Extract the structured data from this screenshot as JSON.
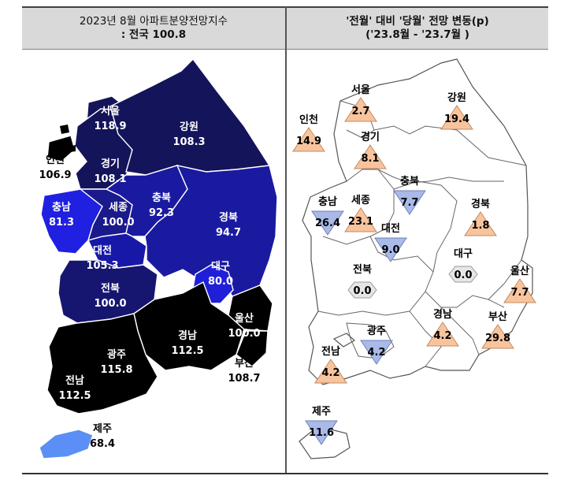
{
  "left_panel": {
    "title": "2023년 8월 아파트분양전망지수",
    "subtitle": ": 전국 100.8",
    "regions": [
      {
        "name": "서울",
        "value": "118.9",
        "color": "#14145a"
      },
      {
        "name": "인천",
        "value": "106.9",
        "color": "#000000"
      },
      {
        "name": "경기",
        "value": "108.1",
        "color": "#14145a"
      },
      {
        "name": "강원",
        "value": "108.3",
        "color": "#14145a"
      },
      {
        "name": "충남",
        "value": "81.3",
        "color": "#2020e0"
      },
      {
        "name": "세종",
        "value": "100.0",
        "color": "#1a1a8c"
      },
      {
        "name": "충북",
        "value": "92.3",
        "color": "#1a1aa0"
      },
      {
        "name": "대전",
        "value": "105.3",
        "color": "#1818a8"
      },
      {
        "name": "경북",
        "value": "94.7",
        "color": "#1a1aa0"
      },
      {
        "name": "대구",
        "value": "80.0",
        "color": "#1f1fd8"
      },
      {
        "name": "전북",
        "value": "100.0",
        "color": "#161670"
      },
      {
        "name": "울산",
        "value": "100.0",
        "color": "#000000"
      },
      {
        "name": "경남",
        "value": "112.5",
        "color": "#000000"
      },
      {
        "name": "광주",
        "value": "115.8",
        "color": "#000000"
      },
      {
        "name": "부산",
        "value": "108.7",
        "color": "#000000"
      },
      {
        "name": "전남",
        "value": "112.5",
        "color": "#000000"
      },
      {
        "name": "제주",
        "value": "68.4",
        "color": "#5b8ff5"
      }
    ]
  },
  "right_panel": {
    "title": "'전월' 대비 '당월' 전망 변동(p)",
    "subtitle": "('23.8월 - '23.7월 )",
    "colors": {
      "up": "#f8c49e",
      "down": "#a9b9e8",
      "flat": "#e6e6e6"
    },
    "regions": [
      {
        "name": "서울",
        "change": "2.7",
        "direction": "up"
      },
      {
        "name": "인천",
        "change": "14.9",
        "direction": "up"
      },
      {
        "name": "경기",
        "change": "8.1",
        "direction": "up"
      },
      {
        "name": "강원",
        "change": "19.4",
        "direction": "up"
      },
      {
        "name": "충남",
        "change": "26.4",
        "direction": "down"
      },
      {
        "name": "세종",
        "change": "23.1",
        "direction": "up"
      },
      {
        "name": "충북",
        "change": "7.7",
        "direction": "down"
      },
      {
        "name": "대전",
        "change": "9.0",
        "direction": "down"
      },
      {
        "name": "경북",
        "change": "1.8",
        "direction": "up"
      },
      {
        "name": "대구",
        "change": "0.0",
        "direction": "flat"
      },
      {
        "name": "전북",
        "change": "0.0",
        "direction": "flat"
      },
      {
        "name": "울산",
        "change": "7.7",
        "direction": "up"
      },
      {
        "name": "광주",
        "change": "4.2",
        "direction": "down"
      },
      {
        "name": "경남",
        "change": "4.2",
        "direction": "up"
      },
      {
        "name": "부산",
        "change": "29.8",
        "direction": "up"
      },
      {
        "name": "전남",
        "change": "4.2",
        "direction": "up"
      },
      {
        "name": "제주",
        "change": "11.6",
        "direction": "down"
      }
    ]
  }
}
